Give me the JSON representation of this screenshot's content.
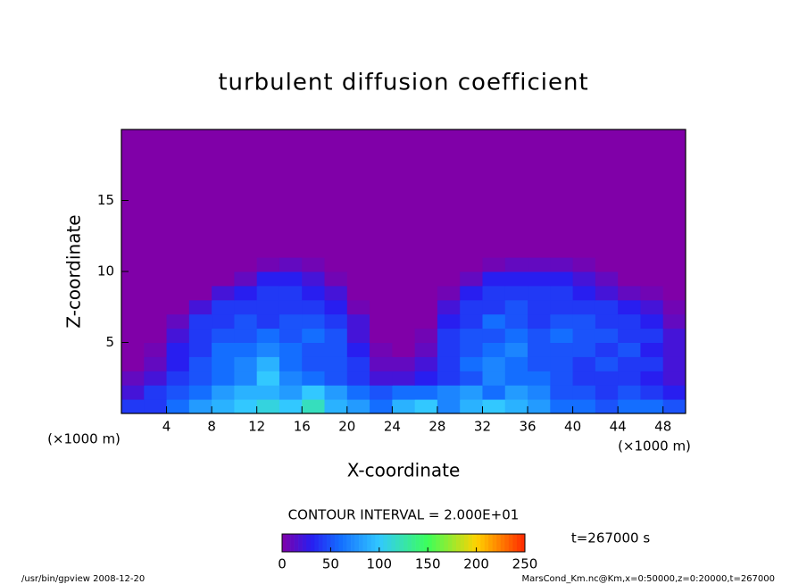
{
  "chart_data": {
    "type": "heatmap",
    "title": "turbulent diffusion coefficient",
    "x_label": "X-coordinate",
    "y_label": "Z-coordinate",
    "x_unit": "(×1000 m)",
    "y_unit": "(×1000 m)",
    "xlim": [
      0,
      50
    ],
    "ylim": [
      0,
      20
    ],
    "xticks": [
      4,
      8,
      12,
      16,
      20,
      24,
      28,
      32,
      36,
      40,
      44,
      48
    ],
    "yticks": [
      5,
      10,
      15
    ],
    "x_edges": [
      0,
      2,
      4,
      6,
      8,
      10,
      12,
      14,
      16,
      18,
      20,
      22,
      24,
      26,
      28,
      30,
      32,
      34,
      36,
      38,
      40,
      42,
      44,
      46,
      48,
      50
    ],
    "z_edges": [
      0,
      1,
      2,
      3,
      4,
      5,
      6,
      7,
      8,
      9,
      10,
      11,
      20
    ],
    "values": [
      [
        40,
        40,
        60,
        80,
        90,
        100,
        110,
        100,
        120,
        90,
        80,
        60,
        90,
        100,
        70,
        90,
        100,
        90,
        80,
        60,
        60,
        50,
        60,
        60,
        50
      ],
      [
        20,
        40,
        50,
        60,
        80,
        90,
        90,
        80,
        100,
        80,
        60,
        50,
        60,
        60,
        70,
        80,
        60,
        80,
        70,
        50,
        50,
        40,
        50,
        40,
        30
      ],
      [
        10,
        20,
        40,
        50,
        60,
        70,
        100,
        70,
        60,
        50,
        40,
        20,
        20,
        30,
        40,
        50,
        70,
        60,
        60,
        50,
        40,
        40,
        40,
        30,
        20
      ],
      [
        0,
        10,
        30,
        50,
        60,
        70,
        90,
        60,
        50,
        50,
        40,
        10,
        10,
        20,
        40,
        60,
        70,
        60,
        50,
        50,
        40,
        50,
        40,
        40,
        20
      ],
      [
        0,
        5,
        30,
        40,
        60,
        60,
        70,
        60,
        50,
        50,
        30,
        5,
        0,
        10,
        40,
        50,
        60,
        70,
        50,
        50,
        50,
        40,
        50,
        30,
        20
      ],
      [
        0,
        0,
        20,
        40,
        50,
        50,
        60,
        50,
        60,
        50,
        20,
        0,
        0,
        5,
        40,
        50,
        50,
        60,
        50,
        60,
        50,
        50,
        40,
        40,
        20
      ],
      [
        0,
        0,
        10,
        40,
        40,
        50,
        40,
        50,
        50,
        40,
        20,
        0,
        0,
        0,
        30,
        40,
        60,
        50,
        40,
        50,
        50,
        40,
        40,
        30,
        10
      ],
      [
        0,
        0,
        0,
        20,
        40,
        40,
        40,
        40,
        40,
        30,
        5,
        0,
        0,
        0,
        20,
        40,
        40,
        50,
        40,
        40,
        40,
        40,
        30,
        20,
        5
      ],
      [
        0,
        0,
        0,
        0,
        20,
        30,
        40,
        40,
        30,
        20,
        0,
        0,
        0,
        0,
        5,
        30,
        40,
        40,
        40,
        40,
        30,
        20,
        10,
        5,
        0
      ],
      [
        0,
        0,
        0,
        0,
        0,
        10,
        30,
        30,
        20,
        5,
        0,
        0,
        0,
        0,
        0,
        10,
        30,
        30,
        30,
        30,
        20,
        10,
        0,
        0,
        0
      ],
      [
        0,
        0,
        0,
        0,
        0,
        0,
        5,
        10,
        5,
        0,
        0,
        0,
        0,
        0,
        0,
        0,
        5,
        10,
        10,
        10,
        5,
        0,
        0,
        0,
        0
      ],
      [
        0,
        0,
        0,
        0,
        0,
        0,
        0,
        0,
        0,
        0,
        0,
        0,
        0,
        0,
        0,
        0,
        0,
        0,
        0,
        0,
        0,
        0,
        0,
        0,
        0
      ]
    ],
    "colorbar": {
      "lim": [
        0,
        250
      ],
      "ticks": [
        0,
        50,
        100,
        150,
        200,
        250
      ]
    },
    "contour_note": "CONTOUR INTERVAL = 2.000E+01",
    "time_note": "t=267000 s",
    "footer_left": "/usr/bin/gpview  2008-12-20",
    "footer_right": "MarsCond_Km.nc@Km,x=0:50000,z=0:20000,t=267000"
  }
}
